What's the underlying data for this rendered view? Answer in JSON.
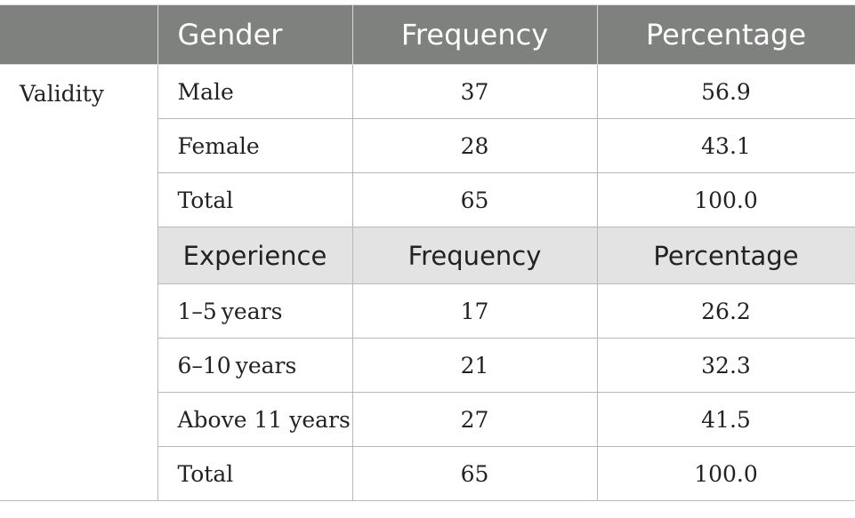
{
  "table": {
    "header": {
      "corner": "",
      "col1": "Gender",
      "col2": "Frequency",
      "col3": "Percentage"
    },
    "row_group_label": "Validity",
    "gender_rows": [
      {
        "label": "Male",
        "frequency": "37",
        "percentage": "56.9"
      },
      {
        "label": "Female",
        "frequency": "28",
        "percentage": "43.1"
      },
      {
        "label": "Total",
        "frequency": "65",
        "percentage": "100.0"
      }
    ],
    "sub_header": {
      "col1": "Experience",
      "col2": "Frequency",
      "col3": "Percentage"
    },
    "experience_rows": [
      {
        "label": "1–5 years",
        "frequency": "17",
        "percentage": "26.2"
      },
      {
        "label": "6–10 years",
        "frequency": "21",
        "percentage": "32.3"
      },
      {
        "label": "Above 11 years",
        "frequency": "27",
        "percentage": "41.5"
      },
      {
        "label": "Total",
        "frequency": "65",
        "percentage": "100.0"
      }
    ]
  },
  "colors": {
    "header_bg": "#7f817f",
    "subheader_bg": "#e3e3e3",
    "border": "#b8b8b8"
  }
}
